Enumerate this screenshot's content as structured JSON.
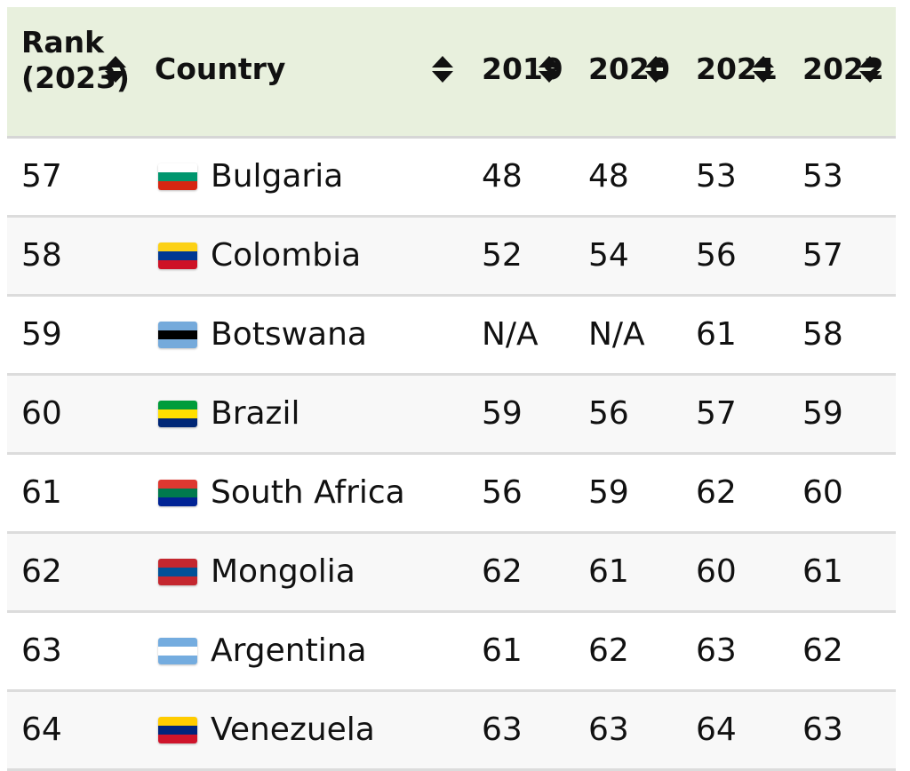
{
  "headers": {
    "rank_line1": "Rank",
    "rank_line2": "(2023)",
    "country": "Country",
    "y2019": "2019",
    "y2020": "2020",
    "y2021": "2021",
    "y2022": "2022"
  },
  "rows": [
    {
      "rank": "57",
      "country": "Bulgaria",
      "y2019": "48",
      "y2020": "48",
      "y2021": "53",
      "y2022": "53",
      "flag": [
        "#ffffff",
        "#00966e",
        "#d62612"
      ]
    },
    {
      "rank": "58",
      "country": "Colombia",
      "y2019": "52",
      "y2020": "54",
      "y2021": "56",
      "y2022": "57",
      "flag": [
        "#fcd116",
        "#003893",
        "#ce1126"
      ]
    },
    {
      "rank": "59",
      "country": "Botswana",
      "y2019": "N/A",
      "y2020": "N/A",
      "y2021": "61",
      "y2022": "58",
      "flag": [
        "#75aadb",
        "#000000",
        "#75aadb"
      ]
    },
    {
      "rank": "60",
      "country": "Brazil",
      "y2019": "59",
      "y2020": "56",
      "y2021": "57",
      "y2022": "59",
      "flag": [
        "#009c3b",
        "#ffdf00",
        "#002776"
      ]
    },
    {
      "rank": "61",
      "country": "South Africa",
      "y2019": "56",
      "y2020": "59",
      "y2021": "62",
      "y2022": "60",
      "flag": [
        "#de3831",
        "#007a4d",
        "#002395"
      ]
    },
    {
      "rank": "62",
      "country": "Mongolia",
      "y2019": "62",
      "y2020": "61",
      "y2021": "60",
      "y2022": "61",
      "flag": [
        "#c4272f",
        "#015197",
        "#c4272f"
      ]
    },
    {
      "rank": "63",
      "country": "Argentina",
      "y2019": "61",
      "y2020": "62",
      "y2021": "63",
      "y2022": "62",
      "flag": [
        "#74acdf",
        "#ffffff",
        "#74acdf"
      ]
    },
    {
      "rank": "64",
      "country": "Venezuela",
      "y2019": "63",
      "y2020": "63",
      "y2021": "64",
      "y2022": "63",
      "flag": [
        "#ffcc00",
        "#00247d",
        "#cf142b"
      ]
    }
  ]
}
